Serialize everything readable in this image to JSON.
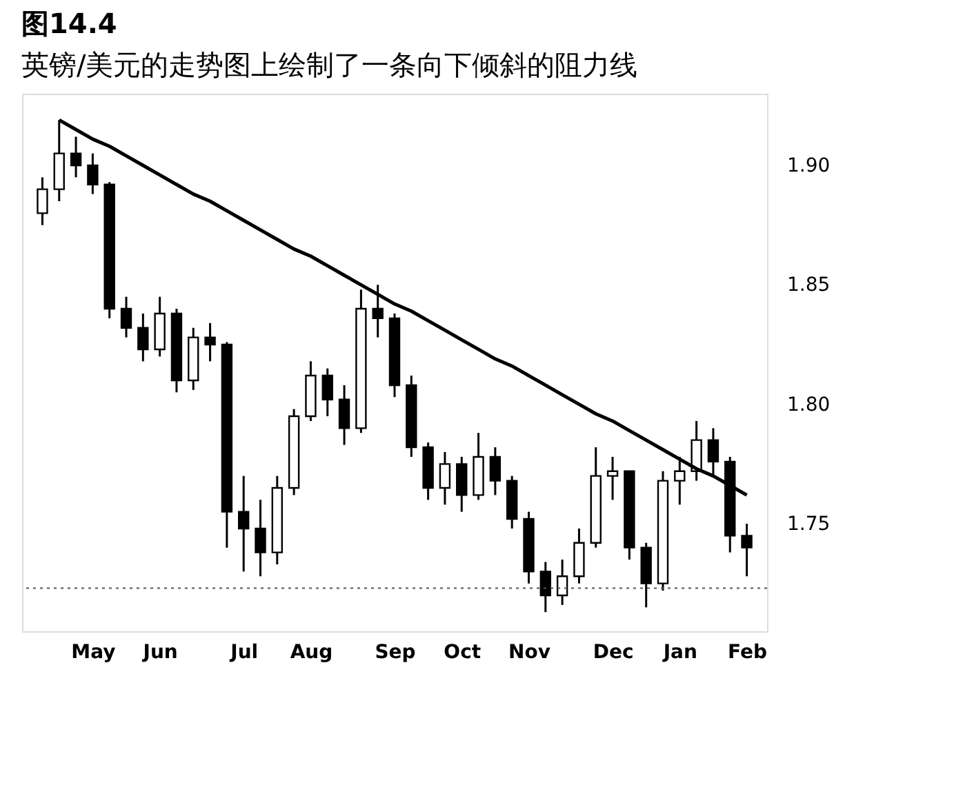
{
  "chart_data": {
    "type": "candlestick",
    "title": "图14.4",
    "subtitle": "英镑/美元的走势图上绘制了一条向下倾斜的阻力线",
    "color": "#000000",
    "categories": [
      null,
      null,
      null,
      "May",
      null,
      null,
      null,
      "Jun",
      null,
      null,
      null,
      null,
      "Jul",
      null,
      null,
      null,
      "Aug",
      null,
      null,
      null,
      null,
      "Sep",
      null,
      null,
      null,
      "Oct",
      null,
      null,
      null,
      "Nov",
      null,
      null,
      null,
      null,
      "Dec",
      null,
      null,
      null,
      "Jan",
      null,
      null,
      null,
      "Feb"
    ],
    "ohlc": [
      [
        1.88,
        1.895,
        1.875,
        1.89
      ],
      [
        1.89,
        1.919,
        1.885,
        1.905
      ],
      [
        1.905,
        1.912,
        1.895,
        1.9
      ],
      [
        1.9,
        1.905,
        1.888,
        1.892
      ],
      [
        1.892,
        1.893,
        1.836,
        1.84
      ],
      [
        1.84,
        1.845,
        1.828,
        1.832
      ],
      [
        1.832,
        1.838,
        1.818,
        1.823
      ],
      [
        1.823,
        1.845,
        1.82,
        1.838
      ],
      [
        1.838,
        1.84,
        1.805,
        1.81
      ],
      [
        1.81,
        1.832,
        1.806,
        1.828
      ],
      [
        1.828,
        1.834,
        1.818,
        1.825
      ],
      [
        1.825,
        1.826,
        1.74,
        1.755
      ],
      [
        1.755,
        1.77,
        1.73,
        1.748
      ],
      [
        1.748,
        1.76,
        1.728,
        1.738
      ],
      [
        1.738,
        1.77,
        1.733,
        1.765
      ],
      [
        1.765,
        1.798,
        1.762,
        1.795
      ],
      [
        1.795,
        1.818,
        1.793,
        1.812
      ],
      [
        1.812,
        1.815,
        1.795,
        1.802
      ],
      [
        1.802,
        1.808,
        1.783,
        1.79
      ],
      [
        1.79,
        1.848,
        1.788,
        1.84
      ],
      [
        1.84,
        1.85,
        1.828,
        1.836
      ],
      [
        1.836,
        1.838,
        1.803,
        1.808
      ],
      [
        1.808,
        1.812,
        1.778,
        1.782
      ],
      [
        1.782,
        1.784,
        1.76,
        1.765
      ],
      [
        1.765,
        1.78,
        1.758,
        1.775
      ],
      [
        1.775,
        1.778,
        1.755,
        1.762
      ],
      [
        1.762,
        1.788,
        1.76,
        1.778
      ],
      [
        1.778,
        1.782,
        1.762,
        1.768
      ],
      [
        1.768,
        1.77,
        1.748,
        1.752
      ],
      [
        1.752,
        1.755,
        1.725,
        1.73
      ],
      [
        1.73,
        1.734,
        1.713,
        1.72
      ],
      [
        1.72,
        1.735,
        1.716,
        1.728
      ],
      [
        1.728,
        1.748,
        1.725,
        1.742
      ],
      [
        1.742,
        1.782,
        1.74,
        1.77
      ],
      [
        1.77,
        1.778,
        1.76,
        1.772
      ],
      [
        1.772,
        1.772,
        1.735,
        1.74
      ],
      [
        1.74,
        1.742,
        1.715,
        1.725
      ],
      [
        1.725,
        1.772,
        1.722,
        1.768
      ],
      [
        1.768,
        1.778,
        1.758,
        1.772
      ],
      [
        1.772,
        1.793,
        1.768,
        1.785
      ],
      [
        1.785,
        1.79,
        1.77,
        1.776
      ],
      [
        1.776,
        1.778,
        1.738,
        1.745
      ],
      [
        1.745,
        1.75,
        1.728,
        1.74
      ]
    ],
    "series": [
      {
        "type": "line",
        "color": "#000000",
        "values": [
          null,
          1.919,
          1.915,
          1.911,
          1.908,
          1.904,
          1.9,
          1.896,
          1.892,
          1.888,
          1.885,
          1.881,
          1.877,
          1.873,
          1.869,
          1.865,
          1.862,
          1.858,
          1.854,
          1.85,
          1.846,
          1.842,
          1.839,
          1.835,
          1.831,
          1.827,
          1.823,
          1.819,
          1.816,
          1.812,
          1.808,
          1.804,
          1.8,
          1.796,
          1.793,
          1.789,
          1.785,
          1.781,
          1.777,
          1.773,
          1.77,
          1.766,
          1.762
        ]
      }
    ],
    "ylim": [
      1.705,
      1.93
    ],
    "yticks": [
      {
        "value": 1.75,
        "label": "1.75"
      },
      {
        "value": 1.8,
        "label": "1.80"
      },
      {
        "value": 1.85,
        "label": "1.85"
      },
      {
        "value": 1.9,
        "label": "1.90"
      }
    ],
    "ref_lines": [
      {
        "axis": "y",
        "value": 1.723,
        "label": null,
        "color": "#555555",
        "line_style": "dotted"
      }
    ],
    "grid": false
  }
}
